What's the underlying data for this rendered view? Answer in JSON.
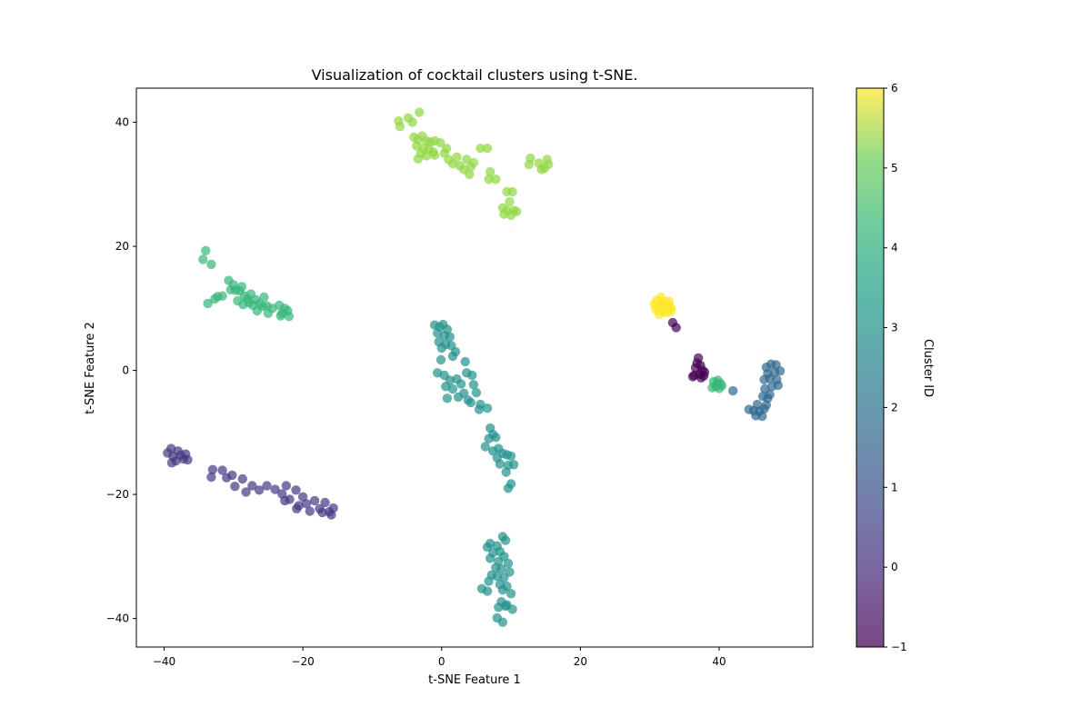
{
  "chart_data": {
    "type": "scatter",
    "title": "Visualization of cocktail clusters using t-SNE.",
    "xlabel": "t-SNE Feature 1",
    "ylabel": "t-SNE Feature 2",
    "xlim": [
      -44,
      53.5
    ],
    "ylim": [
      -44.6,
      45.5
    ],
    "xticks": [
      -40,
      -20,
      0,
      20,
      40
    ],
    "yticks": [
      -40,
      -20,
      0,
      20,
      40
    ],
    "grid": false,
    "colormap": "viridis",
    "colorbar": {
      "label": "Cluster ID",
      "range": [
        -1,
        6
      ],
      "ticks": [
        -1,
        0,
        1,
        2,
        3,
        4,
        5,
        6
      ]
    },
    "marker_alpha": 0.7,
    "series": [
      {
        "cluster": -1,
        "color": "#440154",
        "points": [
          [
            37.0,
            2.0
          ],
          [
            36.8,
            1.2
          ],
          [
            37.3,
            0.8
          ],
          [
            36.6,
            0.4
          ],
          [
            37.6,
            0.0
          ],
          [
            37.2,
            -0.6
          ],
          [
            36.4,
            -0.8
          ],
          [
            37.9,
            -0.3
          ],
          [
            37.4,
            -1.2
          ],
          [
            36.2,
            -1.0
          ],
          [
            37.8,
            -0.9
          ],
          [
            33.3,
            7.7
          ],
          [
            33.8,
            6.9
          ]
        ]
      },
      {
        "cluster": 0,
        "color": "#443983",
        "points": [
          [
            -39.5,
            -13.3
          ],
          [
            -39.0,
            -12.6
          ],
          [
            -38.7,
            -13.9
          ],
          [
            -38.3,
            -14.6
          ],
          [
            -38.0,
            -13.0
          ],
          [
            -37.6,
            -13.7
          ],
          [
            -37.2,
            -14.3
          ],
          [
            -36.9,
            -13.5
          ],
          [
            -38.9,
            -14.9
          ],
          [
            -36.6,
            -14.4
          ],
          [
            -33.0,
            -16.0
          ],
          [
            -33.2,
            -17.2
          ],
          [
            -31.6,
            -16.1
          ],
          [
            -31.0,
            -17.3
          ],
          [
            -30.2,
            -16.9
          ],
          [
            -29.8,
            -18.7
          ],
          [
            -28.7,
            -17.5
          ],
          [
            -28.2,
            -19.6
          ],
          [
            -27.3,
            -18.6
          ],
          [
            -26.3,
            -19.3
          ],
          [
            -25.2,
            -18.6
          ],
          [
            -24.0,
            -19.2
          ],
          [
            -23.0,
            -19.9
          ],
          [
            -22.4,
            -18.6
          ],
          [
            -21.9,
            -20.8
          ],
          [
            -21.0,
            -19.3
          ],
          [
            -20.6,
            -21.8
          ],
          [
            -20.0,
            -20.4
          ],
          [
            -19.5,
            -21.5
          ],
          [
            -19.0,
            -22.7
          ],
          [
            -18.3,
            -21.0
          ],
          [
            -17.6,
            -22.3
          ],
          [
            -16.8,
            -21.3
          ],
          [
            -16.2,
            -22.8
          ],
          [
            -15.6,
            -22.2
          ],
          [
            -15.9,
            -23.3
          ],
          [
            -17.2,
            -22.9
          ],
          [
            -20.9,
            -22.3
          ],
          [
            -22.6,
            -21.0
          ]
        ]
      },
      {
        "cluster": 1,
        "color": "#31688e",
        "points": [
          [
            46.8,
            0.5
          ],
          [
            47.5,
            1.0
          ],
          [
            48.2,
            0.9
          ],
          [
            47.0,
            -0.5
          ],
          [
            48.0,
            -0.3
          ],
          [
            48.8,
            -0.1
          ],
          [
            46.5,
            -1.5
          ],
          [
            47.3,
            -1.3
          ],
          [
            48.3,
            -1.5
          ],
          [
            46.6,
            -3.0
          ],
          [
            47.6,
            -2.6
          ],
          [
            48.5,
            -2.4
          ],
          [
            46.3,
            -4.2
          ],
          [
            47.0,
            -4.5
          ],
          [
            46.8,
            -5.6
          ],
          [
            45.5,
            -5.5
          ],
          [
            45.0,
            -6.5
          ],
          [
            45.8,
            -6.6
          ],
          [
            46.5,
            -6.2
          ],
          [
            44.3,
            -6.3
          ],
          [
            46.2,
            -7.4
          ],
          [
            45.3,
            -7.3
          ],
          [
            42.0,
            -3.3
          ],
          [
            47.3,
            -3.9
          ]
        ]
      },
      {
        "cluster": 2,
        "color": "#21918c",
        "points": [
          [
            -1.0,
            7.3
          ],
          [
            -0.3,
            7.0
          ],
          [
            0.2,
            7.4
          ],
          [
            0.8,
            6.6
          ],
          [
            -0.6,
            6.0
          ],
          [
            0.4,
            5.6
          ],
          [
            1.2,
            5.4
          ],
          [
            -0.4,
            4.6
          ],
          [
            0.6,
            4.2
          ],
          [
            1.4,
            4.0
          ],
          [
            0.0,
            3.6
          ],
          [
            2.0,
            3.0
          ],
          [
            1.6,
            2.3
          ],
          [
            -0.1,
            1.7
          ],
          [
            3.4,
            1.4
          ],
          [
            -0.6,
            -0.4
          ],
          [
            0.4,
            -0.8
          ],
          [
            1.2,
            -1.6
          ],
          [
            2.2,
            -1.4
          ],
          [
            0.6,
            -2.6
          ],
          [
            1.6,
            -3.0
          ],
          [
            2.8,
            -2.2
          ],
          [
            3.6,
            -0.4
          ],
          [
            4.4,
            -0.8
          ],
          [
            4.6,
            -2.3
          ],
          [
            3.2,
            -3.7
          ],
          [
            2.4,
            -4.3
          ],
          [
            0.8,
            -4.5
          ],
          [
            3.8,
            -4.8
          ],
          [
            5.0,
            -3.6
          ],
          [
            4.2,
            -5.2
          ],
          [
            5.6,
            -5.5
          ],
          [
            6.6,
            -6.1
          ],
          [
            5.4,
            -6.3
          ],
          [
            7.0,
            -9.3
          ],
          [
            7.4,
            -10.3
          ],
          [
            6.8,
            -11.0
          ],
          [
            7.8,
            -10.8
          ],
          [
            6.3,
            -12.3
          ],
          [
            7.4,
            -13.0
          ],
          [
            8.2,
            -12.6
          ],
          [
            8.8,
            -13.4
          ],
          [
            8.0,
            -14.1
          ],
          [
            9.4,
            -13.6
          ],
          [
            10.0,
            -13.8
          ],
          [
            8.4,
            -15.1
          ],
          [
            9.6,
            -15.3
          ],
          [
            10.4,
            -15.2
          ],
          [
            9.3,
            -16.4
          ],
          [
            10.0,
            -18.3
          ],
          [
            9.6,
            -19.0
          ],
          [
            8.8,
            -26.8
          ],
          [
            9.2,
            -27.4
          ],
          [
            7.0,
            -27.9
          ],
          [
            6.6,
            -28.5
          ],
          [
            8.0,
            -28.3
          ],
          [
            7.4,
            -29.4
          ],
          [
            8.4,
            -29.2
          ],
          [
            9.0,
            -30.0
          ],
          [
            7.0,
            -30.3
          ],
          [
            8.2,
            -30.8
          ],
          [
            9.6,
            -31.1
          ],
          [
            7.8,
            -31.8
          ],
          [
            8.6,
            -32.0
          ],
          [
            9.8,
            -32.5
          ],
          [
            7.2,
            -33.0
          ],
          [
            8.0,
            -33.2
          ],
          [
            9.0,
            -33.4
          ],
          [
            6.8,
            -34.0
          ],
          [
            8.4,
            -34.5
          ],
          [
            9.4,
            -34.8
          ],
          [
            5.8,
            -35.2
          ],
          [
            6.6,
            -35.6
          ],
          [
            8.8,
            -35.4
          ],
          [
            10.0,
            -36.0
          ],
          [
            8.6,
            -37.3
          ],
          [
            9.4,
            -37.8
          ],
          [
            8.2,
            -38.2
          ],
          [
            9.2,
            -38.0
          ],
          [
            10.2,
            -38.5
          ],
          [
            8.0,
            -39.9
          ],
          [
            8.8,
            -40.6
          ]
        ]
      },
      {
        "cluster": 3,
        "color": "#35b779",
        "points": [
          [
            39.2,
            -1.8
          ],
          [
            39.8,
            -1.6
          ],
          [
            40.2,
            -2.1
          ],
          [
            39.5,
            -2.6
          ],
          [
            40.0,
            -2.9
          ],
          [
            39.0,
            -2.8
          ],
          [
            40.4,
            -2.5
          ],
          [
            39.7,
            -2.2
          ]
        ]
      },
      {
        "cluster": 4,
        "color": "#35b779",
        "points": [
          [
            -34.0,
            19.3
          ],
          [
            -34.4,
            17.9
          ],
          [
            -33.2,
            17.1
          ],
          [
            -33.7,
            10.8
          ],
          [
            -32.7,
            11.5
          ],
          [
            -32.3,
            11.9
          ],
          [
            -31.6,
            12.0
          ],
          [
            -30.7,
            14.5
          ],
          [
            -30.0,
            13.8
          ],
          [
            -30.4,
            13.0
          ],
          [
            -29.7,
            12.9
          ],
          [
            -29.1,
            12.8
          ],
          [
            -28.8,
            13.5
          ],
          [
            -28.4,
            12.0
          ],
          [
            -29.4,
            11.2
          ],
          [
            -28.0,
            11.5
          ],
          [
            -28.6,
            10.6
          ],
          [
            -27.5,
            12.3
          ],
          [
            -26.8,
            11.4
          ],
          [
            -27.2,
            10.5
          ],
          [
            -27.8,
            10.9
          ],
          [
            -26.2,
            10.7
          ],
          [
            -25.6,
            11.8
          ],
          [
            -26.6,
            9.6
          ],
          [
            -25.2,
            10.4
          ],
          [
            -25.0,
            9.2
          ],
          [
            -23.4,
            10.5
          ],
          [
            -23.0,
            9.2
          ],
          [
            -22.2,
            9.6
          ],
          [
            -22.0,
            8.7
          ],
          [
            -23.2,
            8.8
          ],
          [
            -22.6,
            10.0
          ],
          [
            -24.4,
            10.0
          ],
          [
            -25.8,
            10.3
          ]
        ]
      },
      {
        "cluster": 5,
        "color": "#90d743",
        "points": [
          [
            -6.2,
            40.2
          ],
          [
            -6.0,
            39.3
          ],
          [
            -4.8,
            40.7
          ],
          [
            -4.2,
            40.0
          ],
          [
            -3.2,
            41.6
          ],
          [
            -4.0,
            37.6
          ],
          [
            -3.4,
            37.2
          ],
          [
            -2.8,
            37.8
          ],
          [
            -2.2,
            37.0
          ],
          [
            -1.6,
            36.8
          ],
          [
            -1.0,
            37.0
          ],
          [
            -0.2,
            36.7
          ],
          [
            -3.6,
            36.2
          ],
          [
            -2.6,
            35.8
          ],
          [
            -1.8,
            35.6
          ],
          [
            -1.2,
            35.2
          ],
          [
            -3.0,
            35.0
          ],
          [
            -2.2,
            34.6
          ],
          [
            -3.4,
            34.1
          ],
          [
            -1.0,
            34.7
          ],
          [
            0.4,
            35.0
          ],
          [
            0.7,
            35.8
          ],
          [
            1.0,
            34.0
          ],
          [
            1.6,
            33.3
          ],
          [
            2.2,
            34.4
          ],
          [
            2.6,
            33.0
          ],
          [
            3.2,
            32.4
          ],
          [
            3.6,
            34.0
          ],
          [
            4.2,
            32.8
          ],
          [
            4.0,
            31.6
          ],
          [
            4.6,
            33.5
          ],
          [
            5.6,
            35.8
          ],
          [
            6.6,
            35.8
          ],
          [
            7.0,
            32.0
          ],
          [
            6.8,
            30.8
          ],
          [
            7.8,
            30.8
          ],
          [
            9.4,
            28.8
          ],
          [
            10.2,
            28.8
          ],
          [
            9.8,
            27.2
          ],
          [
            8.8,
            26.2
          ],
          [
            9.4,
            25.8
          ],
          [
            10.4,
            25.8
          ],
          [
            9.0,
            25.2
          ],
          [
            10.0,
            25.0
          ],
          [
            10.8,
            25.6
          ],
          [
            12.8,
            34.2
          ],
          [
            12.6,
            33.2
          ],
          [
            14.0,
            33.4
          ],
          [
            14.8,
            32.6
          ],
          [
            15.4,
            33.2
          ],
          [
            15.2,
            34.0
          ],
          [
            14.4,
            32.4
          ]
        ]
      },
      {
        "cluster": 6,
        "color": "#fde725",
        "points": [
          [
            30.6,
            10.7
          ],
          [
            31.0,
            11.3
          ],
          [
            31.6,
            11.8
          ],
          [
            32.1,
            11.2
          ],
          [
            32.7,
            10.6
          ],
          [
            33.1,
            10.0
          ],
          [
            31.2,
            10.1
          ],
          [
            31.9,
            9.6
          ],
          [
            32.4,
            9.3
          ],
          [
            31.4,
            9.0
          ],
          [
            32.0,
            10.3
          ],
          [
            30.9,
            9.8
          ],
          [
            32.8,
            11.1
          ],
          [
            31.5,
            10.6
          ],
          [
            33.0,
            9.5
          ]
        ]
      }
    ]
  }
}
